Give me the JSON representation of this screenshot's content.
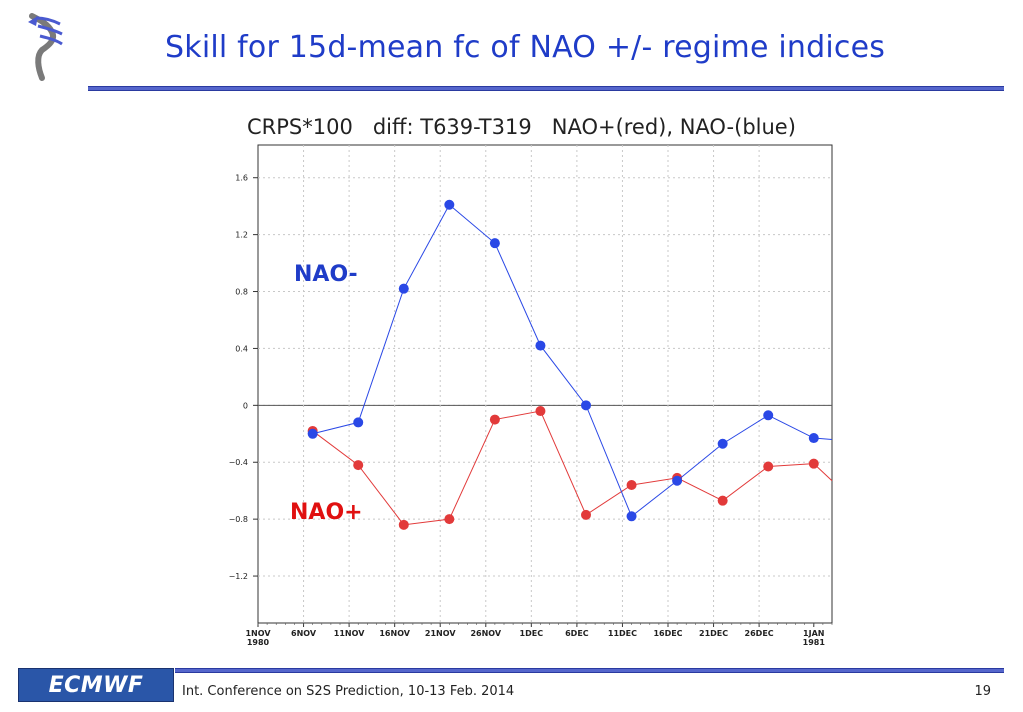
{
  "slide": {
    "title": "Skill for 15d-mean fc of NAO +/- regime indices",
    "footer_text": "Int. Conference on S2S Prediction, 10-13 Feb. 2014",
    "page_number": "19",
    "footer_logo_text": "ECMWF"
  },
  "colors": {
    "title": "#1f3cc8",
    "nao_minus": "#2a48e6",
    "nao_plus": "#e23a3a",
    "rule": "#5566cc"
  },
  "chart_data": {
    "type": "line",
    "title": "CRPS*100   diff: T639-T319   NAO+(red), NAO-(blue)",
    "xlabel": "",
    "ylabel": "",
    "x": [
      "1NOV 1980",
      "6NOV",
      "11NOV",
      "16NOV",
      "21NOV",
      "26NOV",
      "1DEC",
      "6DEC",
      "11DEC",
      "16DEC",
      "21DEC",
      "26DEC",
      "1JAN 1981"
    ],
    "x_tick_labels": [
      {
        "line1": "1NOV",
        "line2": "1980"
      },
      {
        "line1": "6NOV",
        "line2": ""
      },
      {
        "line1": "11NOV",
        "line2": ""
      },
      {
        "line1": "16NOV",
        "line2": ""
      },
      {
        "line1": "21NOV",
        "line2": ""
      },
      {
        "line1": "26NOV",
        "line2": ""
      },
      {
        "line1": "1DEC",
        "line2": ""
      },
      {
        "line1": "6DEC",
        "line2": ""
      },
      {
        "line1": "11DEC",
        "line2": ""
      },
      {
        "line1": "16DEC",
        "line2": ""
      },
      {
        "line1": "21DEC",
        "line2": ""
      },
      {
        "line1": "26DEC",
        "line2": ""
      },
      {
        "line1": "1JAN",
        "line2": "1981"
      }
    ],
    "y_ticks": [
      1.6,
      1.2,
      0.8,
      0.4,
      0,
      -0.4,
      -0.8,
      -1.2
    ],
    "y_tick_labels": [
      "1.6",
      "1.2",
      "0.8",
      "0.4",
      "0",
      "−0.4",
      "−0.8",
      "−1.2"
    ],
    "ylim": [
      -1.53,
      1.83
    ],
    "xlim_days": [
      0,
      63
    ],
    "grid": true,
    "zero_line": true,
    "series": [
      {
        "name": "NAO-",
        "color": "#2a48e6",
        "x_days": [
          6,
          11,
          16,
          21,
          26,
          31,
          36,
          41,
          46,
          51,
          56,
          61,
          63
        ],
        "values": [
          -0.2,
          -0.12,
          0.82,
          1.41,
          1.14,
          0.42,
          0.0,
          -0.78,
          -0.53,
          -0.27,
          -0.07,
          -0.23,
          -0.24
        ],
        "marker_count": 12
      },
      {
        "name": "NAO+",
        "color": "#e23a3a",
        "x_days": [
          6,
          11,
          16,
          21,
          26,
          31,
          36,
          41,
          46,
          51,
          56,
          61,
          63
        ],
        "values": [
          -0.18,
          -0.42,
          -0.84,
          -0.8,
          -0.1,
          -0.04,
          -0.77,
          -0.56,
          -0.51,
          -0.67,
          -0.43,
          -0.41,
          -0.53
        ],
        "marker_count": 12
      }
    ],
    "annotations": [
      {
        "text": "NAO-",
        "color": "#1f3cc8"
      },
      {
        "text": "NAO+",
        "color": "#e01010"
      }
    ]
  }
}
